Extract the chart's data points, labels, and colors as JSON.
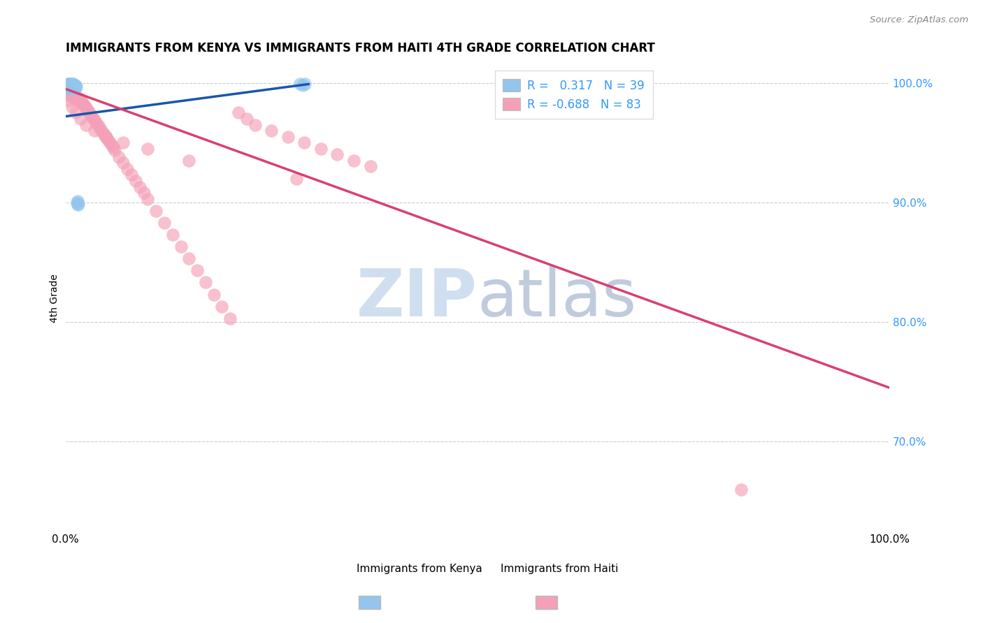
{
  "title": "IMMIGRANTS FROM KENYA VS IMMIGRANTS FROM HAITI 4TH GRADE CORRELATION CHART",
  "source": "Source: ZipAtlas.com",
  "ylabel": "4th Grade",
  "kenya_R": 0.317,
  "kenya_N": 39,
  "haiti_R": -0.688,
  "haiti_N": 83,
  "kenya_color": "#93C5ED",
  "haiti_color": "#F4A0B8",
  "kenya_line_color": "#1A56AA",
  "haiti_line_color": "#D94070",
  "watermark_color": "#D0DFF0",
  "grid_color": "#cccccc",
  "xlim": [
    0.0,
    1.0
  ],
  "ylim": [
    0.625,
    1.015
  ],
  "kenya_line_x": [
    0.0,
    0.295
  ],
  "kenya_line_y": [
    0.972,
    0.999
  ],
  "haiti_line_x": [
    0.0,
    1.0
  ],
  "haiti_line_y": [
    0.995,
    0.745
  ],
  "kenya_scatter_x": [
    0.002,
    0.003,
    0.003,
    0.004,
    0.004,
    0.004,
    0.005,
    0.005,
    0.005,
    0.006,
    0.006,
    0.006,
    0.007,
    0.007,
    0.007,
    0.007,
    0.008,
    0.008,
    0.008,
    0.009,
    0.009,
    0.01,
    0.01,
    0.01,
    0.011,
    0.012,
    0.012,
    0.013,
    0.003,
    0.005,
    0.006,
    0.008,
    0.285,
    0.288,
    0.291,
    0.015,
    0.015,
    0.014,
    0.016
  ],
  "kenya_scatter_y": [
    0.998,
    0.997,
    0.999,
    0.998,
    0.997,
    0.999,
    0.998,
    0.999,
    0.997,
    0.998,
    0.997,
    0.999,
    0.998,
    0.997,
    0.999,
    0.998,
    0.997,
    0.999,
    0.996,
    0.998,
    0.997,
    0.998,
    0.997,
    0.999,
    0.997,
    0.998,
    0.996,
    0.997,
    0.998,
    0.996,
    0.995,
    0.997,
    0.999,
    0.998,
    0.999,
    0.898,
    0.901,
    0.9,
    0.899
  ],
  "haiti_scatter_x": [
    0.003,
    0.004,
    0.005,
    0.006,
    0.007,
    0.008,
    0.009,
    0.01,
    0.011,
    0.012,
    0.013,
    0.014,
    0.015,
    0.016,
    0.017,
    0.018,
    0.019,
    0.02,
    0.021,
    0.022,
    0.023,
    0.024,
    0.025,
    0.026,
    0.027,
    0.028,
    0.03,
    0.032,
    0.034,
    0.036,
    0.038,
    0.04,
    0.042,
    0.044,
    0.046,
    0.048,
    0.05,
    0.052,
    0.054,
    0.056,
    0.058,
    0.06,
    0.065,
    0.07,
    0.075,
    0.08,
    0.085,
    0.09,
    0.095,
    0.1,
    0.11,
    0.12,
    0.13,
    0.14,
    0.15,
    0.16,
    0.17,
    0.18,
    0.19,
    0.2,
    0.21,
    0.22,
    0.23,
    0.25,
    0.27,
    0.29,
    0.31,
    0.33,
    0.35,
    0.37,
    0.003,
    0.005,
    0.008,
    0.012,
    0.018,
    0.025,
    0.035,
    0.05,
    0.07,
    0.1,
    0.15,
    0.28,
    0.82
  ],
  "haiti_scatter_y": [
    0.993,
    0.992,
    0.991,
    0.993,
    0.992,
    0.99,
    0.989,
    0.988,
    0.99,
    0.989,
    0.988,
    0.987,
    0.986,
    0.985,
    0.987,
    0.986,
    0.985,
    0.984,
    0.983,
    0.982,
    0.981,
    0.98,
    0.979,
    0.978,
    0.977,
    0.976,
    0.974,
    0.972,
    0.97,
    0.968,
    0.966,
    0.964,
    0.962,
    0.96,
    0.958,
    0.956,
    0.954,
    0.952,
    0.95,
    0.948,
    0.946,
    0.944,
    0.938,
    0.933,
    0.928,
    0.923,
    0.918,
    0.913,
    0.908,
    0.903,
    0.893,
    0.883,
    0.873,
    0.863,
    0.853,
    0.843,
    0.833,
    0.823,
    0.813,
    0.803,
    0.975,
    0.97,
    0.965,
    0.96,
    0.955,
    0.95,
    0.945,
    0.94,
    0.935,
    0.93,
    0.99,
    0.985,
    0.98,
    0.975,
    0.97,
    0.965,
    0.96,
    0.955,
    0.95,
    0.945,
    0.935,
    0.92,
    0.66
  ]
}
